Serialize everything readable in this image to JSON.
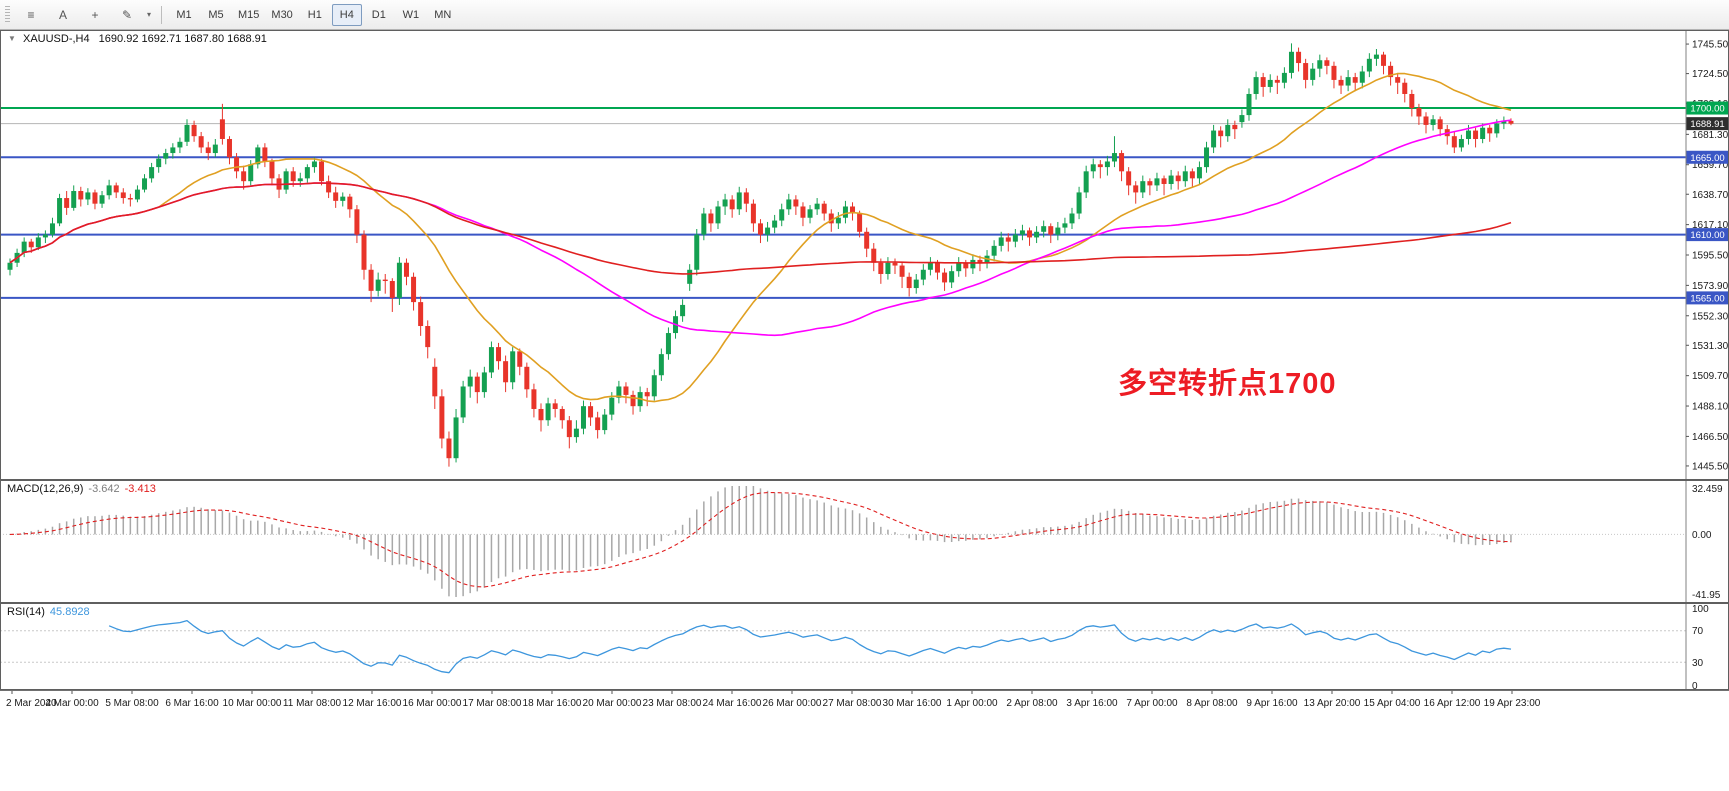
{
  "ui": {
    "toolbar": {
      "icons": [
        {
          "name": "chart-list-icon",
          "glyph": "≡"
        },
        {
          "name": "auto-arrange-icon",
          "glyph": "A"
        },
        {
          "name": "crosshair-icon",
          "glyph": "+"
        },
        {
          "name": "brush-icon",
          "glyph": "✎"
        },
        {
          "name": "caret-down-icon",
          "glyph": "▾"
        }
      ],
      "timeframes": [
        "M1",
        "M5",
        "M15",
        "M30",
        "H1",
        "H4",
        "D1",
        "W1",
        "MN"
      ],
      "active_timeframe": "H4"
    },
    "header": {
      "collapse_arrow": "▼",
      "symbol": "XAUUSD-,H4",
      "values": "1690.92 1692.71 1687.80 1688.91"
    },
    "annotation": {
      "text": "多空转折点1700",
      "color": "#ed1c24"
    },
    "macd_label": {
      "name": "MACD(12,26,9)",
      "main": "-3.642",
      "signal": "-3.413"
    },
    "rsi_label": {
      "name": "RSI(14)",
      "value": "45.8928"
    }
  },
  "chart_data": {
    "type": "candlestick",
    "title": "XAUUSD-,H4",
    "symbol": "XAUUSD-",
    "timeframe": "H4",
    "ylim": [
      1435.5,
      1755.5
    ],
    "up_color": "#14a051",
    "down_color": "#e8342a",
    "price_ticks": [
      1745.5,
      1724.5,
      1703.1,
      1681.3,
      1659.7,
      1638.7,
      1617.1,
      1595.5,
      1573.9,
      1552.3,
      1531.3,
      1509.7,
      1488.1,
      1466.5,
      1445.5
    ],
    "price_tick_labels": [
      "1745.50",
      "1724.50",
      "1703.10",
      "1681.30",
      "1659.70",
      "1638.70",
      "1617.10",
      "1595.50",
      "1573.90",
      "1552.30",
      "1531.30",
      "1509.70",
      "1488.10",
      "1466.50",
      "1445.50"
    ],
    "time_labels": [
      "2 Mar 2020",
      "4 Mar 00:00",
      "5 Mar 08:00",
      "6 Mar 16:00",
      "10 Mar 00:00",
      "11 Mar 08:00",
      "12 Mar 16:00",
      "16 Mar 00:00",
      "17 Mar 08:00",
      "18 Mar 16:00",
      "20 Mar 00:00",
      "23 Mar 08:00",
      "24 Mar 16:00",
      "26 Mar 00:00",
      "27 Mar 08:00",
      "30 Mar 16:00",
      "1 Apr 00:00",
      "2 Apr 08:00",
      "3 Apr 16:00",
      "7 Apr 00:00",
      "8 Apr 08:00",
      "9 Apr 16:00",
      "13 Apr 20:00",
      "15 Apr 04:00",
      "16 Apr 12:00",
      "19 Apr 23:00"
    ],
    "moving_averages": [
      {
        "period": 22,
        "color": "#e0a022"
      },
      {
        "period": 60,
        "color": "#ff00ff"
      },
      {
        "period": 150,
        "color": "#e02020"
      }
    ],
    "hlines": [
      {
        "price": 1700,
        "label": "1700.00",
        "color": "#00a651",
        "width": 2
      },
      {
        "price": 1665,
        "label": "1665.00",
        "color": "#3a56c5",
        "width": 2
      },
      {
        "price": 1610,
        "label": "1610.00",
        "color": "#3a56c5",
        "width": 2
      },
      {
        "price": 1565,
        "label": "1565.00",
        "color": "#3a56c5",
        "width": 2
      }
    ],
    "current_price": {
      "value": 1688.91,
      "label": "1688.91",
      "tag_bg": "#2e2e2e"
    },
    "macd": {
      "params": [
        12,
        26,
        9
      ],
      "main": -3.642,
      "signal": -3.413,
      "range": [
        -41.95,
        32.459
      ],
      "axis_labels": [
        "32.459",
        "0.00",
        "-41.95"
      ],
      "hist_color": "#a8a8a8",
      "signal_color": "#e02020"
    },
    "rsi": {
      "period": 14,
      "value": 45.8928,
      "range": [
        0,
        100
      ],
      "levels": [
        70,
        30
      ],
      "axis_labels": [
        "100",
        "70",
        "30",
        "0"
      ],
      "color": "#3d96dd"
    },
    "candles": [
      [
        1585,
        1593,
        1581,
        1590
      ],
      [
        1590,
        1600,
        1587,
        1597
      ],
      [
        1597,
        1608,
        1594,
        1605
      ],
      [
        1605,
        1607,
        1597,
        1601
      ],
      [
        1601,
        1611,
        1599,
        1608
      ],
      [
        1608,
        1613,
        1604,
        1610
      ],
      [
        1610,
        1622,
        1608,
        1618
      ],
      [
        1618,
        1639,
        1616,
        1636
      ],
      [
        1636,
        1641,
        1624,
        1629
      ],
      [
        1629,
        1645,
        1627,
        1641
      ],
      [
        1641,
        1644,
        1630,
        1635
      ],
      [
        1635,
        1643,
        1631,
        1640
      ],
      [
        1640,
        1642,
        1628,
        1632
      ],
      [
        1632,
        1641,
        1629,
        1638
      ],
      [
        1638,
        1649,
        1635,
        1645
      ],
      [
        1645,
        1647,
        1636,
        1640
      ],
      [
        1640,
        1643,
        1632,
        1636
      ],
      [
        1636,
        1639,
        1630,
        1635
      ],
      [
        1635,
        1645,
        1633,
        1642
      ],
      [
        1642,
        1653,
        1640,
        1650
      ],
      [
        1650,
        1661,
        1647,
        1658
      ],
      [
        1658,
        1667,
        1654,
        1664
      ],
      [
        1664,
        1671,
        1660,
        1668
      ],
      [
        1668,
        1675,
        1664,
        1672
      ],
      [
        1672,
        1679,
        1668,
        1676
      ],
      [
        1676,
        1692,
        1673,
        1688
      ],
      [
        1688,
        1691,
        1676,
        1680
      ],
      [
        1680,
        1683,
        1668,
        1672
      ],
      [
        1672,
        1676,
        1663,
        1668
      ],
      [
        1668,
        1678,
        1665,
        1674
      ],
      [
        1692,
        1703,
        1674,
        1678
      ],
      [
        1678,
        1680,
        1660,
        1665
      ],
      [
        1665,
        1668,
        1650,
        1655
      ],
      [
        1655,
        1659,
        1642,
        1648
      ],
      [
        1648,
        1663,
        1645,
        1660
      ],
      [
        1660,
        1674,
        1657,
        1672
      ],
      [
        1672,
        1675,
        1658,
        1662
      ],
      [
        1662,
        1664,
        1645,
        1650
      ],
      [
        1650,
        1653,
        1636,
        1642
      ],
      [
        1642,
        1657,
        1639,
        1655
      ],
      [
        1655,
        1658,
        1644,
        1648
      ],
      [
        1648,
        1654,
        1644,
        1650
      ],
      [
        1650,
        1660,
        1647,
        1658
      ],
      [
        1658,
        1665,
        1654,
        1662
      ],
      [
        1662,
        1664,
        1645,
        1648
      ],
      [
        1648,
        1652,
        1636,
        1640
      ],
      [
        1640,
        1644,
        1629,
        1634
      ],
      [
        1634,
        1640,
        1630,
        1637
      ],
      [
        1637,
        1639,
        1622,
        1628
      ],
      [
        1628,
        1631,
        1604,
        1610
      ],
      [
        1610,
        1613,
        1578,
        1585
      ],
      [
        1585,
        1589,
        1562,
        1570
      ],
      [
        1570,
        1583,
        1566,
        1578
      ],
      [
        1578,
        1582,
        1568,
        1577
      ],
      [
        1577,
        1579,
        1555,
        1565
      ],
      [
        1565,
        1594,
        1560,
        1590
      ],
      [
        1590,
        1593,
        1574,
        1580
      ],
      [
        1580,
        1583,
        1556,
        1562
      ],
      [
        1562,
        1566,
        1538,
        1545
      ],
      [
        1545,
        1549,
        1522,
        1530
      ],
      [
        1516,
        1522,
        1486,
        1495
      ],
      [
        1495,
        1500,
        1458,
        1465
      ],
      [
        1465,
        1470,
        1445,
        1451
      ],
      [
        1451,
        1486,
        1448,
        1480
      ],
      [
        1480,
        1506,
        1476,
        1502
      ],
      [
        1502,
        1514,
        1494,
        1509
      ],
      [
        1509,
        1512,
        1490,
        1498
      ],
      [
        1498,
        1516,
        1494,
        1512
      ],
      [
        1512,
        1534,
        1508,
        1530
      ],
      [
        1530,
        1533,
        1514,
        1520
      ],
      [
        1520,
        1524,
        1498,
        1505
      ],
      [
        1505,
        1530,
        1500,
        1527
      ],
      [
        1527,
        1529,
        1510,
        1516
      ],
      [
        1516,
        1519,
        1494,
        1500
      ],
      [
        1500,
        1504,
        1480,
        1486
      ],
      [
        1486,
        1490,
        1470,
        1478
      ],
      [
        1478,
        1494,
        1474,
        1490
      ],
      [
        1490,
        1493,
        1480,
        1486
      ],
      [
        1486,
        1488,
        1472,
        1478
      ],
      [
        1478,
        1481,
        1458,
        1466
      ],
      [
        1466,
        1478,
        1462,
        1472
      ],
      [
        1472,
        1492,
        1468,
        1488
      ],
      [
        1488,
        1491,
        1474,
        1480
      ],
      [
        1480,
        1484,
        1465,
        1471
      ],
      [
        1471,
        1486,
        1468,
        1482
      ],
      [
        1482,
        1498,
        1478,
        1494
      ],
      [
        1494,
        1506,
        1490,
        1502
      ],
      [
        1502,
        1505,
        1490,
        1496
      ],
      [
        1496,
        1499,
        1482,
        1488
      ],
      [
        1488,
        1502,
        1484,
        1498
      ],
      [
        1498,
        1501,
        1488,
        1495
      ],
      [
        1495,
        1514,
        1492,
        1510
      ],
      [
        1510,
        1529,
        1506,
        1525
      ],
      [
        1525,
        1544,
        1521,
        1540
      ],
      [
        1540,
        1556,
        1536,
        1552
      ],
      [
        1552,
        1564,
        1548,
        1560
      ],
      [
        1575,
        1589,
        1570,
        1585
      ],
      [
        1585,
        1614,
        1581,
        1610
      ],
      [
        1610,
        1629,
        1606,
        1625
      ],
      [
        1625,
        1628,
        1612,
        1618
      ],
      [
        1618,
        1634,
        1614,
        1630
      ],
      [
        1630,
        1639,
        1624,
        1635
      ],
      [
        1635,
        1638,
        1622,
        1628
      ],
      [
        1628,
        1644,
        1624,
        1640
      ],
      [
        1640,
        1643,
        1626,
        1632
      ],
      [
        1632,
        1635,
        1612,
        1618
      ],
      [
        1618,
        1621,
        1604,
        1610
      ],
      [
        1610,
        1619,
        1605,
        1615
      ],
      [
        1615,
        1624,
        1611,
        1620
      ],
      [
        1620,
        1632,
        1616,
        1628
      ],
      [
        1628,
        1639,
        1624,
        1635
      ],
      [
        1635,
        1638,
        1624,
        1630
      ],
      [
        1630,
        1633,
        1616,
        1622
      ],
      [
        1622,
        1631,
        1618,
        1628
      ],
      [
        1628,
        1636,
        1624,
        1632
      ],
      [
        1632,
        1634,
        1620,
        1625
      ],
      [
        1625,
        1628,
        1612,
        1618
      ],
      [
        1618,
        1626,
        1614,
        1622
      ],
      [
        1622,
        1634,
        1618,
        1630
      ],
      [
        1630,
        1633,
        1620,
        1625
      ],
      [
        1625,
        1627,
        1608,
        1612
      ],
      [
        1612,
        1615,
        1594,
        1600
      ],
      [
        1600,
        1604,
        1584,
        1590
      ],
      [
        1590,
        1593,
        1575,
        1582
      ],
      [
        1582,
        1594,
        1578,
        1590
      ],
      [
        1590,
        1593,
        1582,
        1588
      ],
      [
        1588,
        1590,
        1572,
        1580
      ],
      [
        1580,
        1583,
        1566,
        1572
      ],
      [
        1572,
        1582,
        1568,
        1578
      ],
      [
        1578,
        1589,
        1574,
        1585
      ],
      [
        1585,
        1594,
        1581,
        1590
      ],
      [
        1590,
        1592,
        1578,
        1583
      ],
      [
        1583,
        1586,
        1570,
        1576
      ],
      [
        1576,
        1588,
        1572,
        1584
      ],
      [
        1584,
        1594,
        1580,
        1590
      ],
      [
        1590,
        1592,
        1580,
        1586
      ],
      [
        1586,
        1596,
        1582,
        1592
      ],
      [
        1592,
        1595,
        1584,
        1590
      ],
      [
        1590,
        1599,
        1586,
        1595
      ],
      [
        1595,
        1606,
        1591,
        1602
      ],
      [
        1602,
        1612,
        1598,
        1608
      ],
      [
        1608,
        1611,
        1598,
        1605
      ],
      [
        1605,
        1614,
        1601,
        1610
      ],
      [
        1610,
        1617,
        1606,
        1613
      ],
      [
        1613,
        1615,
        1602,
        1608
      ],
      [
        1608,
        1616,
        1604,
        1612
      ],
      [
        1612,
        1620,
        1608,
        1616
      ],
      [
        1616,
        1618,
        1604,
        1610
      ],
      [
        1610,
        1619,
        1606,
        1615
      ],
      [
        1615,
        1622,
        1611,
        1618
      ],
      [
        1618,
        1629,
        1614,
        1625
      ],
      [
        1625,
        1644,
        1621,
        1640
      ],
      [
        1640,
        1659,
        1636,
        1655
      ],
      [
        1655,
        1664,
        1650,
        1660
      ],
      [
        1660,
        1663,
        1650,
        1658
      ],
      [
        1658,
        1666,
        1652,
        1662
      ],
      [
        1662,
        1680,
        1658,
        1668
      ],
      [
        1668,
        1670,
        1648,
        1655
      ],
      [
        1655,
        1658,
        1638,
        1645
      ],
      [
        1645,
        1648,
        1632,
        1640
      ],
      [
        1640,
        1652,
        1636,
        1648
      ],
      [
        1648,
        1650,
        1638,
        1645
      ],
      [
        1645,
        1654,
        1641,
        1650
      ],
      [
        1650,
        1652,
        1638,
        1646
      ],
      [
        1646,
        1656,
        1642,
        1652
      ],
      [
        1652,
        1655,
        1642,
        1648
      ],
      [
        1648,
        1659,
        1644,
        1655
      ],
      [
        1655,
        1657,
        1644,
        1650
      ],
      [
        1650,
        1662,
        1646,
        1658
      ],
      [
        1658,
        1676,
        1654,
        1672
      ],
      [
        1672,
        1688,
        1668,
        1684
      ],
      [
        1684,
        1687,
        1672,
        1680
      ],
      [
        1680,
        1692,
        1676,
        1688
      ],
      [
        1688,
        1691,
        1678,
        1685
      ],
      [
        1690,
        1699,
        1686,
        1695
      ],
      [
        1695,
        1714,
        1691,
        1710
      ],
      [
        1710,
        1726,
        1706,
        1722
      ],
      [
        1722,
        1725,
        1708,
        1715
      ],
      [
        1715,
        1724,
        1711,
        1720
      ],
      [
        1720,
        1723,
        1710,
        1718
      ],
      [
        1718,
        1729,
        1714,
        1725
      ],
      [
        1725,
        1746,
        1721,
        1740
      ],
      [
        1740,
        1743,
        1726,
        1732
      ],
      [
        1732,
        1735,
        1714,
        1720
      ],
      [
        1720,
        1732,
        1716,
        1728
      ],
      [
        1728,
        1738,
        1722,
        1734
      ],
      [
        1734,
        1736,
        1724,
        1730
      ],
      [
        1730,
        1733,
        1714,
        1720
      ],
      [
        1720,
        1723,
        1710,
        1716
      ],
      [
        1716,
        1727,
        1712,
        1722
      ],
      [
        1722,
        1725,
        1712,
        1718
      ],
      [
        1718,
        1730,
        1714,
        1726
      ],
      [
        1726,
        1739,
        1722,
        1735
      ],
      [
        1735,
        1742,
        1730,
        1738
      ],
      [
        1738,
        1740,
        1724,
        1730
      ],
      [
        1730,
        1733,
        1716,
        1722
      ],
      [
        1722,
        1725,
        1710,
        1718
      ],
      [
        1718,
        1721,
        1704,
        1710
      ],
      [
        1710,
        1713,
        1694,
        1700
      ],
      [
        1700,
        1703,
        1688,
        1694
      ],
      [
        1694,
        1697,
        1682,
        1688
      ],
      [
        1688,
        1695,
        1684,
        1692
      ],
      [
        1692,
        1694,
        1680,
        1685
      ],
      [
        1685,
        1688,
        1674,
        1680
      ],
      [
        1680,
        1683,
        1668,
        1672
      ],
      [
        1672,
        1681,
        1669,
        1678
      ],
      [
        1678,
        1688,
        1674,
        1684
      ],
      [
        1684,
        1686,
        1672,
        1678
      ],
      [
        1678,
        1689,
        1675,
        1686
      ],
      [
        1686,
        1688,
        1676,
        1682
      ],
      [
        1682,
        1692,
        1679,
        1689
      ],
      [
        1689,
        1694,
        1685,
        1690.9
      ],
      [
        1690.9,
        1692.7,
        1687.8,
        1688.9
      ]
    ]
  }
}
